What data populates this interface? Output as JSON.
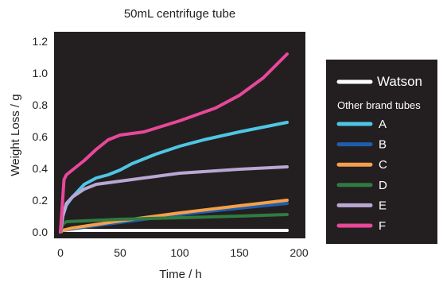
{
  "chart_data": {
    "type": "line",
    "title": "50mL centrifuge tube",
    "xlabel": "Time / h",
    "ylabel": "Weight Loss / g",
    "xlim": [
      0,
      200
    ],
    "ylim": [
      0,
      1.2
    ],
    "x_ticks": [
      0,
      50,
      100,
      150,
      200
    ],
    "y_ticks": [
      0.0,
      0.2,
      0.4,
      0.6,
      0.8,
      1.0,
      1.2
    ],
    "x_tick_labels": [
      "0",
      "50",
      "100",
      "150",
      "200"
    ],
    "y_tick_labels": [
      "0.0",
      "0.2",
      "0.4",
      "0.6",
      "0.8",
      "1.0",
      "1.2"
    ],
    "grid": false,
    "legend_position": "right",
    "legend_subtitle": "Other brand tubes",
    "background": "#231f20",
    "series": [
      {
        "name": "Watson",
        "color": "#ffffff",
        "x": [
          0,
          2,
          190
        ],
        "y": [
          0.0,
          0.01,
          0.01
        ]
      },
      {
        "name": "A",
        "color": "#4fc6e4",
        "x": [
          0,
          2,
          5,
          10,
          20,
          30,
          40,
          50,
          60,
          80,
          100,
          120,
          150,
          170,
          190
        ],
        "y": [
          0.0,
          0.1,
          0.17,
          0.22,
          0.3,
          0.34,
          0.36,
          0.39,
          0.43,
          0.49,
          0.54,
          0.58,
          0.63,
          0.66,
          0.69
        ]
      },
      {
        "name": "B",
        "color": "#1f5eab",
        "x": [
          0,
          2,
          10,
          50,
          100,
          150,
          190
        ],
        "y": [
          0.0,
          0.01,
          0.02,
          0.06,
          0.11,
          0.15,
          0.18
        ]
      },
      {
        "name": "C",
        "color": "#f5a04a",
        "x": [
          0,
          2,
          10,
          50,
          100,
          150,
          190
        ],
        "y": [
          0.0,
          0.01,
          0.025,
          0.07,
          0.12,
          0.165,
          0.2
        ]
      },
      {
        "name": "D",
        "color": "#2f7b41",
        "x": [
          0,
          2,
          5,
          50,
          100,
          150,
          190
        ],
        "y": [
          0.0,
          0.05,
          0.065,
          0.08,
          0.09,
          0.1,
          0.11
        ]
      },
      {
        "name": "E",
        "color": "#b9a7d4",
        "x": [
          0,
          2,
          5,
          10,
          20,
          30,
          50,
          80,
          100,
          150,
          190
        ],
        "y": [
          0.0,
          0.1,
          0.18,
          0.22,
          0.27,
          0.3,
          0.32,
          0.35,
          0.37,
          0.395,
          0.41
        ]
      },
      {
        "name": "F",
        "color": "#e8489a",
        "x": [
          0,
          3,
          5,
          10,
          20,
          30,
          40,
          50,
          70,
          100,
          130,
          150,
          170,
          190
        ],
        "y": [
          0.0,
          0.33,
          0.36,
          0.39,
          0.45,
          0.52,
          0.58,
          0.61,
          0.63,
          0.7,
          0.78,
          0.86,
          0.97,
          1.12
        ]
      }
    ]
  }
}
